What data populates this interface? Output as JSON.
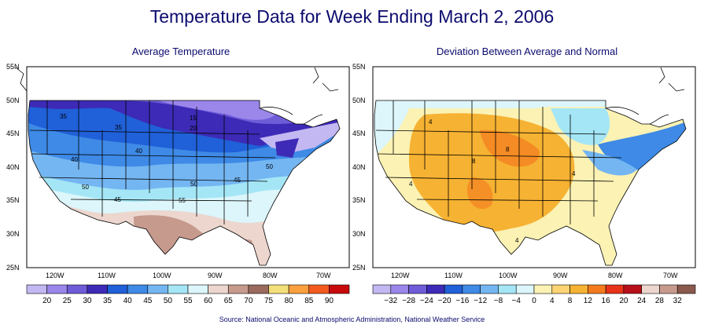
{
  "title": "Temperature Data for Week Ending March 2, 2006",
  "source": "Source:  National Oceanic and Atmospheric Administration, National Weather Service",
  "left_panel": {
    "subtitle": "Average Temperature",
    "lat_labels": [
      "55N",
      "50N",
      "45N",
      "40N",
      "35N",
      "30N",
      "25N"
    ],
    "lon_labels": [
      "120W",
      "110W",
      "100W",
      "90W",
      "80W",
      "70W"
    ],
    "contour_labels": [
      "35",
      "15",
      "20",
      "35",
      "40",
      "40",
      "50",
      "50",
      "45",
      "45",
      "55",
      "50"
    ],
    "legend": {
      "labels": [
        "20",
        "25",
        "30",
        "35",
        "40",
        "45",
        "50",
        "55",
        "60",
        "65",
        "70",
        "75",
        "80",
        "85",
        "90"
      ],
      "colors": [
        "#c4b8f2",
        "#9b86ea",
        "#6e5cd8",
        "#3d2ab6",
        "#2060d8",
        "#3e8ae6",
        "#74b6f2",
        "#a4e6f6",
        "#dcf6fb",
        "#ecd6ce",
        "#c79a8e",
        "#9a6a5e",
        "#f4e07a",
        "#fca03e",
        "#f45a1e",
        "#c80a0a"
      ]
    }
  },
  "right_panel": {
    "subtitle": "Deviation Between Average and Normal",
    "lat_labels": [
      "55N",
      "50N",
      "45N",
      "40N",
      "35N",
      "30N",
      "25N"
    ],
    "lon_labels": [
      "120W",
      "110W",
      "100W",
      "90W",
      "80W",
      "70W"
    ],
    "contour_labels": [
      "4",
      "8",
      "8",
      "4",
      "4",
      "4"
    ],
    "legend": {
      "labels": [
        "−32",
        "−28",
        "−24",
        "−20",
        "−16",
        "−12",
        "−8",
        "−4",
        "0",
        "4",
        "8",
        "12",
        "16",
        "20",
        "24",
        "28",
        "32"
      ],
      "colors": [
        "#c4b8f2",
        "#9b86ea",
        "#6e5cd8",
        "#3d2ab6",
        "#2060d8",
        "#3e8ae6",
        "#74b6f2",
        "#a4e6f6",
        "#dcf6fb",
        "#fbf2b4",
        "#fcd474",
        "#f6b232",
        "#f47a1e",
        "#e8321a",
        "#b8101a",
        "#ecd6ce",
        "#c79a8e",
        "#8a5a4e"
      ]
    }
  }
}
